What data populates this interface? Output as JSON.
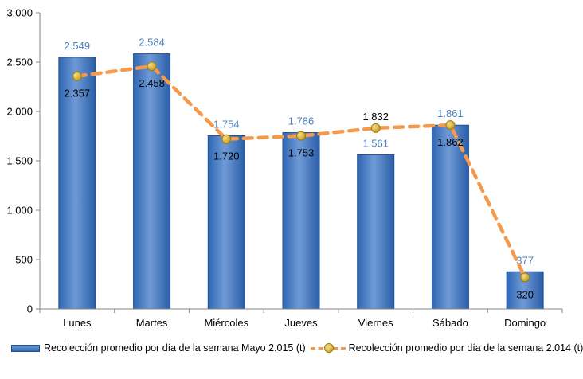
{
  "chart_data": {
    "type": "bar",
    "categories": [
      "Lunes",
      "Martes",
      "Miércoles",
      "Jueves",
      "Viernes",
      "Sábado",
      "Domingo"
    ],
    "series": [
      {
        "name": "Recolección promedio por día de la semana Mayo 2.015 (t)",
        "type": "bar",
        "values": [
          2549,
          2584,
          1754,
          1786,
          1561,
          1861,
          377
        ],
        "labels": [
          "2.549",
          "2.584",
          "1.754",
          "1.786",
          "1.561",
          "1.861",
          "377"
        ],
        "color": "#4a7ebf"
      },
      {
        "name": "Recolección promedio por día de la semana 2.014 (t)",
        "type": "line",
        "style": "dashed",
        "values": [
          2357,
          2458,
          1720,
          1753,
          1832,
          1862,
          320
        ],
        "labels": [
          "2.357",
          "2.458",
          "1.720",
          "1.753",
          "1.832",
          "1.862",
          "320"
        ],
        "color": "#f59a4d",
        "marker_color": "#d4a72c"
      }
    ],
    "ylim": [
      0,
      3000
    ],
    "yticks": [
      0,
      500,
      1000,
      1500,
      2000,
      2500,
      3000
    ],
    "ytick_labels": [
      "0",
      "500",
      "1.000",
      "1.500",
      "2.000",
      "2.500",
      "3.000"
    ],
    "grid": false,
    "legend_position": "bottom"
  }
}
